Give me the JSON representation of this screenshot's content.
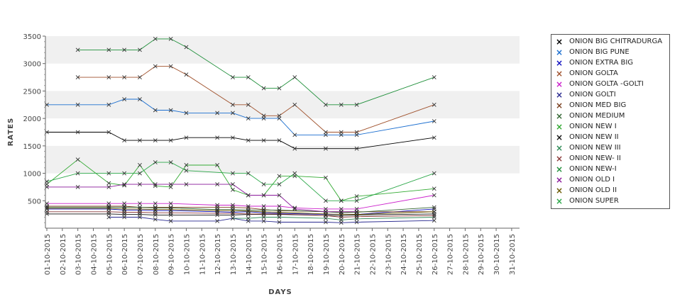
{
  "chart_data": {
    "type": "line",
    "xlabel": "DAYS",
    "ylabel": "RATES",
    "ylim": [
      0,
      3500
    ],
    "yticks": [
      500,
      1000,
      1500,
      2000,
      2500,
      3000,
      3500
    ],
    "categories": [
      "01-10-2015",
      "02-10-2015",
      "03-10-2015",
      "04-10-2015",
      "05-10-2015",
      "06-10-2015",
      "07-10-2015",
      "08-10-2015",
      "09-10-2015",
      "10-10-2015",
      "11-10-2015",
      "12-10-2015",
      "13-10-2015",
      "14-10-2015",
      "15-10-2015",
      "16-10-2015",
      "17-10-2015",
      "18-10-2015",
      "19-10-2015",
      "20-10-2015",
      "21-10-2015",
      "22-10-2015",
      "23-10-2015",
      "24-10-2015",
      "25-10-2015",
      "26-10-2015",
      "27-10-2015",
      "28-10-2015",
      "29-10-2015",
      "30-10-2015",
      "31-10-2015"
    ],
    "legend_position": "right",
    "grid": "horizontal bands",
    "series": [
      {
        "name": "ONION BIG CHITRADURGA",
        "color": "#000000",
        "values": [
          [
            "01-10-2015",
            1750
          ],
          [
            "03-10-2015",
            1750
          ],
          [
            "05-10-2015",
            1750
          ],
          [
            "06-10-2015",
            1600
          ],
          [
            "07-10-2015",
            1600
          ],
          [
            "08-10-2015",
            1600
          ],
          [
            "09-10-2015",
            1600
          ],
          [
            "10-10-2015",
            1650
          ],
          [
            "12-10-2015",
            1650
          ],
          [
            "13-10-2015",
            1650
          ],
          [
            "14-10-2015",
            1600
          ],
          [
            "15-10-2015",
            1600
          ],
          [
            "16-10-2015",
            1600
          ],
          [
            "17-10-2015",
            1450
          ],
          [
            "19-10-2015",
            1450
          ],
          [
            "21-10-2015",
            1450
          ],
          [
            "26-10-2015",
            1650
          ]
        ]
      },
      {
        "name": "ONION BIG PUNE",
        "color": "#1c6fd0",
        "values": [
          [
            "01-10-2015",
            2250
          ],
          [
            "03-10-2015",
            2250
          ],
          [
            "05-10-2015",
            2250
          ],
          [
            "06-10-2015",
            2350
          ],
          [
            "07-10-2015",
            2350
          ],
          [
            "08-10-2015",
            2150
          ],
          [
            "09-10-2015",
            2150
          ],
          [
            "10-10-2015",
            2100
          ],
          [
            "12-10-2015",
            2100
          ],
          [
            "13-10-2015",
            2100
          ],
          [
            "14-10-2015",
            2000
          ],
          [
            "15-10-2015",
            2000
          ],
          [
            "16-10-2015",
            2000
          ],
          [
            "17-10-2015",
            1700
          ],
          [
            "19-10-2015",
            1700
          ],
          [
            "20-10-2015",
            1700
          ],
          [
            "21-10-2015",
            1700
          ],
          [
            "26-10-2015",
            1950
          ]
        ]
      },
      {
        "name": "ONION EXTRA BIG",
        "color": "#1010c0",
        "values": [
          [
            "01-10-2015",
            350
          ],
          [
            "05-10-2015",
            350
          ],
          [
            "06-10-2015",
            330
          ],
          [
            "07-10-2015",
            330
          ],
          [
            "08-10-2015",
            320
          ],
          [
            "09-10-2015",
            320
          ],
          [
            "12-10-2015",
            300
          ],
          [
            "13-10-2015",
            290
          ],
          [
            "14-10-2015",
            300
          ],
          [
            "15-10-2015",
            280
          ],
          [
            "16-10-2015",
            270
          ],
          [
            "19-10-2015",
            250
          ],
          [
            "20-10-2015",
            250
          ],
          [
            "21-10-2015",
            250
          ],
          [
            "26-10-2015",
            350
          ]
        ]
      },
      {
        "name": "ONION GOLTA",
        "color": "#a0522d",
        "values": [
          [
            "03-10-2015",
            2750
          ],
          [
            "05-10-2015",
            2750
          ],
          [
            "06-10-2015",
            2750
          ],
          [
            "07-10-2015",
            2750
          ],
          [
            "08-10-2015",
            2950
          ],
          [
            "09-10-2015",
            2950
          ],
          [
            "10-10-2015",
            2800
          ],
          [
            "13-10-2015",
            2250
          ],
          [
            "14-10-2015",
            2250
          ],
          [
            "15-10-2015",
            2050
          ],
          [
            "16-10-2015",
            2050
          ],
          [
            "17-10-2015",
            2250
          ],
          [
            "19-10-2015",
            1750
          ],
          [
            "20-10-2015",
            1750
          ],
          [
            "21-10-2015",
            1750
          ],
          [
            "26-10-2015",
            2250
          ]
        ]
      },
      {
        "name": "ONION GOLTA -GOLTI",
        "color": "#cc22cc",
        "values": [
          [
            "01-10-2015",
            450
          ],
          [
            "05-10-2015",
            450
          ],
          [
            "06-10-2015",
            450
          ],
          [
            "07-10-2015",
            450
          ],
          [
            "08-10-2015",
            450
          ],
          [
            "09-10-2015",
            450
          ],
          [
            "12-10-2015",
            420
          ],
          [
            "13-10-2015",
            420
          ],
          [
            "14-10-2015",
            400
          ],
          [
            "15-10-2015",
            400
          ],
          [
            "16-10-2015",
            400
          ],
          [
            "17-10-2015",
            370
          ],
          [
            "19-10-2015",
            350
          ],
          [
            "20-10-2015",
            350
          ],
          [
            "21-10-2015",
            350
          ],
          [
            "26-10-2015",
            600
          ]
        ]
      },
      {
        "name": "ONION GOLTI",
        "color": "#2a2a90",
        "values": [
          [
            "05-10-2015",
            200
          ],
          [
            "06-10-2015",
            200
          ],
          [
            "07-10-2015",
            200
          ],
          [
            "08-10-2015",
            160
          ],
          [
            "09-10-2015",
            130
          ],
          [
            "12-10-2015",
            130
          ],
          [
            "13-10-2015",
            180
          ],
          [
            "14-10-2015",
            130
          ],
          [
            "15-10-2015",
            130
          ],
          [
            "16-10-2015",
            110
          ],
          [
            "19-10-2015",
            110
          ],
          [
            "20-10-2015",
            100
          ],
          [
            "21-10-2015",
            110
          ],
          [
            "26-10-2015",
            140
          ]
        ]
      },
      {
        "name": "ONION MED BIG",
        "color": "#7a4020",
        "values": [
          [
            "01-10-2015",
            400
          ],
          [
            "05-10-2015",
            400
          ],
          [
            "06-10-2015",
            400
          ],
          [
            "07-10-2015",
            380
          ],
          [
            "08-10-2015",
            380
          ],
          [
            "09-10-2015",
            380
          ],
          [
            "12-10-2015",
            380
          ],
          [
            "13-10-2015",
            380
          ],
          [
            "14-10-2015",
            370
          ],
          [
            "15-10-2015",
            340
          ],
          [
            "16-10-2015",
            320
          ],
          [
            "19-10-2015",
            300
          ],
          [
            "20-10-2015",
            300
          ],
          [
            "21-10-2015",
            300
          ],
          [
            "26-10-2015",
            300
          ]
        ]
      },
      {
        "name": "ONION MEDIUM",
        "color": "#336633",
        "values": [
          [
            "01-10-2015",
            380
          ],
          [
            "05-10-2015",
            380
          ],
          [
            "06-10-2015",
            380
          ],
          [
            "07-10-2015",
            380
          ],
          [
            "08-10-2015",
            370
          ],
          [
            "09-10-2015",
            370
          ],
          [
            "12-10-2015",
            340
          ],
          [
            "13-10-2015",
            340
          ],
          [
            "14-10-2015",
            330
          ],
          [
            "15-10-2015",
            330
          ],
          [
            "16-10-2015",
            330
          ],
          [
            "19-10-2015",
            300
          ],
          [
            "20-10-2015",
            280
          ],
          [
            "21-10-2015",
            290
          ],
          [
            "26-10-2015",
            380
          ]
        ]
      },
      {
        "name": "ONION NEW I",
        "color": "#33aa33",
        "values": [
          [
            "01-10-2015",
            800
          ],
          [
            "03-10-2015",
            1250
          ],
          [
            "05-10-2015",
            820
          ],
          [
            "06-10-2015",
            780
          ],
          [
            "07-10-2015",
            1150
          ],
          [
            "08-10-2015",
            770
          ],
          [
            "09-10-2015",
            750
          ],
          [
            "10-10-2015",
            1150
          ],
          [
            "12-10-2015",
            1150
          ],
          [
            "13-10-2015",
            700
          ],
          [
            "14-10-2015",
            600
          ],
          [
            "15-10-2015",
            600
          ],
          [
            "16-10-2015",
            950
          ],
          [
            "17-10-2015",
            950
          ],
          [
            "19-10-2015",
            920
          ],
          [
            "20-10-2015",
            500
          ],
          [
            "21-10-2015",
            580
          ],
          [
            "26-10-2015",
            720
          ]
        ]
      },
      {
        "name": "ONION NEW II",
        "color": "#111111",
        "values": [
          [
            "01-10-2015",
            260
          ],
          [
            "05-10-2015",
            260
          ],
          [
            "06-10-2015",
            250
          ],
          [
            "07-10-2015",
            250
          ],
          [
            "08-10-2015",
            240
          ],
          [
            "09-10-2015",
            240
          ],
          [
            "12-10-2015",
            240
          ],
          [
            "13-10-2015",
            240
          ],
          [
            "14-10-2015",
            250
          ],
          [
            "15-10-2015",
            250
          ],
          [
            "16-10-2015",
            250
          ],
          [
            "19-10-2015",
            230
          ],
          [
            "20-10-2015",
            230
          ],
          [
            "21-10-2015",
            240
          ],
          [
            "26-10-2015",
            260
          ]
        ]
      },
      {
        "name": "ONION NEW III",
        "color": "#2e8b57",
        "values": [
          [
            "13-10-2015",
            180
          ],
          [
            "14-10-2015",
            180
          ],
          [
            "15-10-2015",
            200
          ],
          [
            "16-10-2015",
            200
          ],
          [
            "19-10-2015",
            180
          ],
          [
            "20-10-2015",
            150
          ],
          [
            "21-10-2015",
            170
          ],
          [
            "26-10-2015",
            200
          ]
        ]
      },
      {
        "name": "ONION NEW- II",
        "color": "#8b3a3a",
        "values": [
          [
            "01-10-2015",
            300
          ],
          [
            "05-10-2015",
            300
          ],
          [
            "06-10-2015",
            290
          ],
          [
            "07-10-2015",
            290
          ],
          [
            "08-10-2015",
            280
          ],
          [
            "09-10-2015",
            280
          ],
          [
            "12-10-2015",
            270
          ],
          [
            "13-10-2015",
            270
          ],
          [
            "14-10-2015",
            260
          ],
          [
            "15-10-2015",
            260
          ],
          [
            "16-10-2015",
            260
          ],
          [
            "19-10-2015",
            230
          ],
          [
            "20-10-2015",
            200
          ],
          [
            "21-10-2015",
            210
          ],
          [
            "26-10-2015",
            230
          ]
        ]
      },
      {
        "name": "ONION NEW-I",
        "color": "#1f8f3a",
        "values": [
          [
            "03-10-2015",
            3250
          ],
          [
            "05-10-2015",
            3250
          ],
          [
            "06-10-2015",
            3250
          ],
          [
            "07-10-2015",
            3250
          ],
          [
            "08-10-2015",
            3450
          ],
          [
            "09-10-2015",
            3450
          ],
          [
            "10-10-2015",
            3300
          ],
          [
            "13-10-2015",
            2750
          ],
          [
            "14-10-2015",
            2750
          ],
          [
            "15-10-2015",
            2550
          ],
          [
            "16-10-2015",
            2550
          ],
          [
            "17-10-2015",
            2750
          ],
          [
            "19-10-2015",
            2250
          ],
          [
            "20-10-2015",
            2250
          ],
          [
            "21-10-2015",
            2250
          ],
          [
            "26-10-2015",
            2750
          ]
        ]
      },
      {
        "name": "ONION OLD I",
        "color": "#8a1a9a",
        "values": [
          [
            "01-10-2015",
            750
          ],
          [
            "03-10-2015",
            750
          ],
          [
            "05-10-2015",
            750
          ],
          [
            "06-10-2015",
            800
          ],
          [
            "07-10-2015",
            800
          ],
          [
            "08-10-2015",
            800
          ],
          [
            "09-10-2015",
            800
          ],
          [
            "10-10-2015",
            800
          ],
          [
            "12-10-2015",
            800
          ],
          [
            "13-10-2015",
            800
          ],
          [
            "14-10-2015",
            600
          ],
          [
            "15-10-2015",
            600
          ],
          [
            "16-10-2015",
            600
          ],
          [
            "17-10-2015",
            350
          ],
          [
            "19-10-2015",
            300
          ],
          [
            "20-10-2015",
            300
          ],
          [
            "21-10-2015",
            300
          ]
        ]
      },
      {
        "name": "ONION OLD II",
        "color": "#6b5a00",
        "values": [
          [
            "01-10-2015",
            360
          ],
          [
            "05-10-2015",
            360
          ],
          [
            "06-10-2015",
            350
          ],
          [
            "07-10-2015",
            350
          ],
          [
            "08-10-2015",
            340
          ],
          [
            "09-10-2015",
            340
          ],
          [
            "12-10-2015",
            320
          ],
          [
            "13-10-2015",
            320
          ],
          [
            "14-10-2015",
            310
          ],
          [
            "15-10-2015",
            300
          ],
          [
            "16-10-2015",
            290
          ],
          [
            "19-10-2015",
            260
          ],
          [
            "20-10-2015",
            250
          ],
          [
            "21-10-2015",
            250
          ],
          [
            "26-10-2015",
            300
          ]
        ]
      },
      {
        "name": "ONION SUPER",
        "color": "#2da84a",
        "values": [
          [
            "01-10-2015",
            850
          ],
          [
            "03-10-2015",
            1000
          ],
          [
            "05-10-2015",
            1000
          ],
          [
            "06-10-2015",
            1000
          ],
          [
            "07-10-2015",
            1000
          ],
          [
            "08-10-2015",
            1200
          ],
          [
            "09-10-2015",
            1200
          ],
          [
            "10-10-2015",
            1050
          ],
          [
            "13-10-2015",
            1000
          ],
          [
            "14-10-2015",
            1000
          ],
          [
            "15-10-2015",
            800
          ],
          [
            "16-10-2015",
            800
          ],
          [
            "17-10-2015",
            1000
          ],
          [
            "19-10-2015",
            500
          ],
          [
            "20-10-2015",
            500
          ],
          [
            "21-10-2015",
            500
          ],
          [
            "26-10-2015",
            1000
          ]
        ]
      }
    ]
  }
}
